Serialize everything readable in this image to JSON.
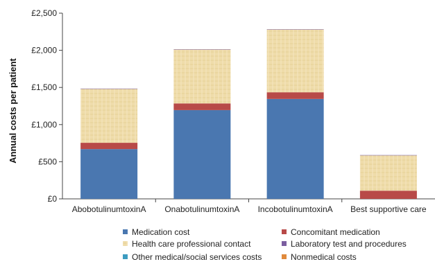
{
  "chart_data": {
    "type": "bar",
    "stacked": true,
    "ylabel": "Annual costs per patient",
    "xlabel": "",
    "ylim": [
      0,
      2500
    ],
    "yticks": [
      0,
      500,
      1000,
      1500,
      2000,
      2500
    ],
    "ytick_labels": [
      "£0",
      "£500",
      "£1,000",
      "£1,500",
      "£2,000",
      "£2,500"
    ],
    "categories": [
      "AbobotulinumtoxinA",
      "OnabotulinumtoxinA",
      "IncobotulinumtoxinA",
      "Best supportive care"
    ],
    "series": [
      {
        "name": "Medication cost",
        "color": "#4a77b0",
        "values": [
          670,
          1195,
          1345,
          0
        ]
      },
      {
        "name": "Concomitant medication",
        "color": "#b84a48",
        "values": [
          85,
          90,
          90,
          110
        ]
      },
      {
        "name": "Health care professional contact",
        "color": "#efdcaa",
        "values": [
          725,
          725,
          845,
          475
        ]
      },
      {
        "name": "Laboratory test and procedures",
        "color": "#7b5ea0",
        "values": [
          5,
          5,
          5,
          5
        ]
      },
      {
        "name": "Other medical/social services costs",
        "color": "#3d9cc0",
        "values": [
          0,
          0,
          0,
          0
        ]
      },
      {
        "name": "Nonmedical costs",
        "color": "#e08a3c",
        "values": [
          0,
          0,
          0,
          0
        ]
      }
    ],
    "legend_position": "bottom",
    "grid": false
  }
}
